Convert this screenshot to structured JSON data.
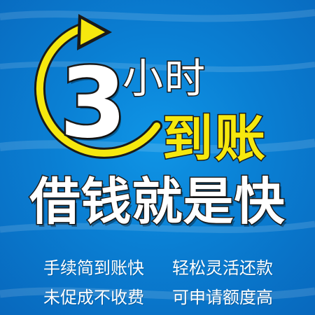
{
  "poster": {
    "digit": "3",
    "hours": "小时",
    "arrive": "到账",
    "slogan": "借钱就是快",
    "features": [
      "手续简到账快",
      "轻松灵活还款",
      "未促成不收费",
      "可申请额度高"
    ]
  },
  "colors": {
    "background": "#0a7fd3",
    "accent_yellow": "#f6e80e",
    "text_white": "#ffffff",
    "outline_dark": "#1a1a1a"
  },
  "icons": {
    "clock_arrow": "circular-arrow-icon"
  }
}
